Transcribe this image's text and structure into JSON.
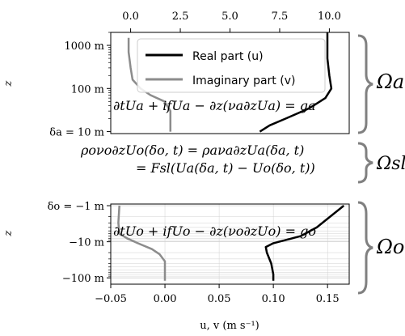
{
  "legend": {
    "real": "Real part (u)",
    "imag": "Imaginary part (v)"
  },
  "colors": {
    "real": "#000000",
    "imag": "#8c8c8c",
    "grid": "#d0d0d0",
    "brace": "#808080"
  },
  "top_axis": {
    "ticks": [
      {
        "v": 0.0,
        "label": "0.0"
      },
      {
        "v": 2.5,
        "label": "2.5"
      },
      {
        "v": 5.0,
        "label": "5.0"
      },
      {
        "v": 7.5,
        "label": "7.5"
      },
      {
        "v": 10.0,
        "label": "10.0"
      }
    ]
  },
  "bottom_axis": {
    "ticks": [
      {
        "v": -0.05,
        "label": "−0.05"
      },
      {
        "v": 0.0,
        "label": "0.00"
      },
      {
        "v": 0.05,
        "label": "0.05"
      },
      {
        "v": 0.1,
        "label": "0.10"
      },
      {
        "v": 0.15,
        "label": "0.15"
      }
    ],
    "label": "u, v (m s⁻¹)"
  },
  "atmos_panel": {
    "ylabel": "z",
    "ticks": [
      {
        "z": 1000,
        "label": "1000 m"
      },
      {
        "z": 100,
        "label": "100 m"
      },
      {
        "z": 10,
        "label": "δa = 10 m"
      }
    ],
    "equation": "∂tUa + ifUa − ∂z(νa∂zUa) = ga"
  },
  "ocean_panel": {
    "ylabel": "z",
    "ticks": [
      {
        "d": 1,
        "label": "δo = −1 m"
      },
      {
        "d": 10,
        "label": "−10 m"
      },
      {
        "d": 100,
        "label": "−100 m"
      }
    ],
    "equation": "∂tUo + ifUo − ∂z(νo∂zUo) = go"
  },
  "interface": {
    "line1": "ρoνo∂zUo(δo, t) = ρaνa∂zUa(δa, t)",
    "line2": "= Fsl(Ua(δa, t) − Uo(δo, t))"
  },
  "braces": {
    "atmos": "Ωa",
    "sl": "Ωsl",
    "ocean": "Ωo"
  },
  "chart_data": [
    {
      "type": "line",
      "panel": "atmosphere",
      "x_axis": "top",
      "xlim": [
        -1.0,
        11.0
      ],
      "ylim_z": [
        9,
        2000
      ],
      "y_scale": "log",
      "series": [
        {
          "name": "Real part (u)",
          "points": [
            [
              6.5,
              10
            ],
            [
              7.0,
              14
            ],
            [
              7.8,
              20
            ],
            [
              9.0,
              35
            ],
            [
              9.8,
              60
            ],
            [
              10.1,
              100
            ],
            [
              10.0,
              200
            ],
            [
              9.9,
              500
            ],
            [
              9.9,
              1000
            ],
            [
              9.9,
              2000
            ]
          ]
        },
        {
          "name": "Imaginary part (v)",
          "points": [
            [
              2.0,
              10
            ],
            [
              2.0,
              30
            ],
            [
              1.7,
              50
            ],
            [
              1.0,
              70
            ],
            [
              0.5,
              100
            ],
            [
              0.1,
              160
            ],
            [
              0.0,
              300
            ],
            [
              -0.1,
              700
            ],
            [
              -0.1,
              1500
            ]
          ]
        }
      ]
    },
    {
      "type": "line",
      "panel": "ocean",
      "x_axis": "bottom",
      "xlim": [
        -0.05,
        0.17
      ],
      "ylim_depth": [
        0.9,
        150
      ],
      "y_scale": "log",
      "series": [
        {
          "name": "Real part (u)",
          "points": [
            [
              0.165,
              1
            ],
            [
              0.14,
              4
            ],
            [
              0.125,
              7
            ],
            [
              0.1,
              11
            ],
            [
              0.093,
              14
            ],
            [
              0.094,
              20
            ],
            [
              0.098,
              40
            ],
            [
              0.1,
              80
            ],
            [
              0.1,
              120
            ]
          ]
        },
        {
          "name": "Imaginary part (v)",
          "points": [
            [
              -0.042,
              1
            ],
            [
              -0.043,
              3
            ],
            [
              -0.042,
              6
            ],
            [
              -0.035,
              8
            ],
            [
              -0.025,
              11
            ],
            [
              -0.012,
              16
            ],
            [
              -0.005,
              22
            ],
            [
              0.0,
              35
            ],
            [
              0.0,
              80
            ],
            [
              0.0,
              120
            ]
          ]
        }
      ]
    }
  ]
}
